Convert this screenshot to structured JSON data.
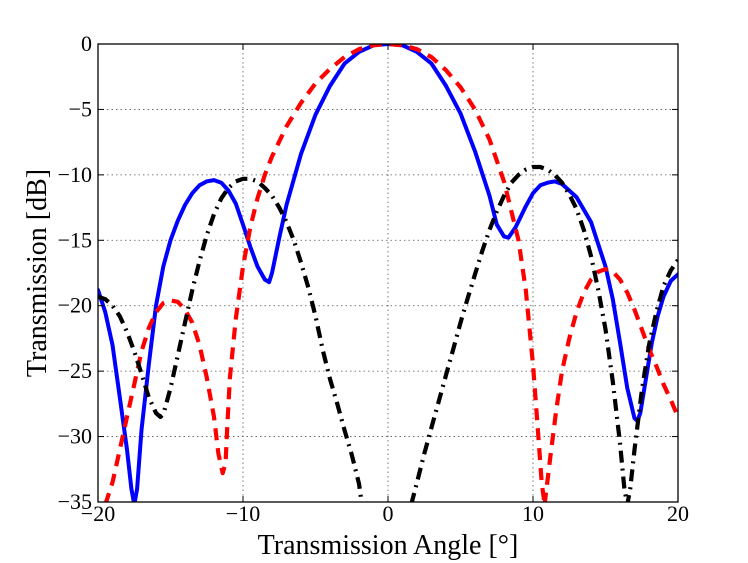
{
  "chart_data": {
    "type": "line",
    "title": "",
    "xlabel": "Transmission Angle [°]",
    "ylabel": "Transmission [dB]",
    "xlim": [
      -20,
      20
    ],
    "ylim": [
      -35,
      0
    ],
    "xticks": [
      -20,
      -10,
      0,
      10,
      20
    ],
    "yticks": [
      0,
      -5,
      -10,
      -15,
      -20,
      -25,
      -30,
      -35
    ],
    "xtick_labels": [
      "−20",
      "−10",
      "0",
      "10",
      "20"
    ],
    "ytick_labels": [
      "0",
      "−5",
      "−10",
      "−15",
      "−20",
      "−25",
      "−30",
      "−35"
    ],
    "grid": true,
    "series": [
      {
        "name": "blue-solid",
        "color": "#0000ff",
        "style": "solid",
        "x": [
          -20,
          -19.5,
          -19,
          -18.5,
          -18,
          -17.7,
          -17.5,
          -17.3,
          -17,
          -16.5,
          -16,
          -15.5,
          -15,
          -14.5,
          -14,
          -13.5,
          -13,
          -12.5,
          -12,
          -11.5,
          -11,
          -10.5,
          -10,
          -9.5,
          -9,
          -8.5,
          -8.2,
          -8,
          -7.5,
          -7,
          -6,
          -5,
          -4,
          -3,
          -2,
          -1,
          0,
          1,
          2,
          3,
          4,
          5,
          6,
          7,
          7.5,
          8,
          8.3,
          8.8,
          9.5,
          10,
          10.5,
          11,
          11.5,
          12,
          13,
          14,
          15,
          15.5,
          16,
          16.5,
          17,
          17.2,
          17.4,
          17.8,
          18.2,
          18.6,
          19,
          19.5,
          20
        ],
        "y": [
          -18.8,
          -20.5,
          -23,
          -27,
          -31,
          -34,
          -35.2,
          -34,
          -29.5,
          -24.5,
          -20,
          -17,
          -15,
          -13.5,
          -12.3,
          -11.4,
          -10.8,
          -10.5,
          -10.4,
          -10.6,
          -11.2,
          -12.2,
          -13.8,
          -15.5,
          -17.0,
          -18.0,
          -18.2,
          -17.5,
          -14.8,
          -12.3,
          -8.4,
          -5.4,
          -3.2,
          -1.5,
          -0.6,
          -0.1,
          0,
          -0.1,
          -0.6,
          -1.5,
          -3.2,
          -5.3,
          -8.2,
          -11.6,
          -13.8,
          -14.7,
          -14.8,
          -14.0,
          -12.4,
          -11.4,
          -10.8,
          -10.6,
          -10.5,
          -10.7,
          -11.7,
          -13.6,
          -17.0,
          -19.5,
          -22.8,
          -26.3,
          -28.6,
          -28.8,
          -28.2,
          -25.5,
          -22.8,
          -20.8,
          -19.3,
          -18.1,
          -17.6
        ]
      },
      {
        "name": "red-dashed",
        "color": "#ff0000",
        "style": "dashed",
        "x": [
          -19.5,
          -19,
          -18.5,
          -18,
          -17.5,
          -17,
          -16.5,
          -16,
          -15.5,
          -15,
          -14.5,
          -14,
          -13.5,
          -13,
          -12.5,
          -12,
          -11.7,
          -11.4,
          -11.2,
          -11.1,
          -10.9,
          -10.5,
          -10,
          -9.5,
          -9,
          -8.5,
          -8,
          -7,
          -6,
          -5,
          -4,
          -3,
          -2,
          -1,
          0,
          1,
          2,
          3,
          4,
          5,
          6,
          7,
          8,
          9,
          9.5,
          10,
          10.3,
          10.6,
          10.8
        ],
        "y": [
          -35.2,
          -33.5,
          -31.0,
          -28.5,
          -26.0,
          -23.5,
          -21.7,
          -20.5,
          -19.8,
          -19.6,
          -19.7,
          -20.3,
          -21.3,
          -23.0,
          -25.5,
          -28.5,
          -31.3,
          -32.8,
          -32.0,
          -29.5,
          -25.5,
          -21.0,
          -17.0,
          -14.0,
          -11.8,
          -10.0,
          -8.6,
          -6.3,
          -4.5,
          -3.0,
          -1.9,
          -1.0,
          -0.4,
          -0.1,
          0,
          -0.1,
          -0.4,
          -1.0,
          -2.0,
          -3.3,
          -5.0,
          -7.3,
          -10.5,
          -15.0,
          -18.8,
          -24.5,
          -29.0,
          -33.5,
          -35.2
        ]
      },
      {
        "name": "red-dashed-right",
        "color": "#ff0000",
        "style": "dashed",
        "x": [
          10.8,
          11.2,
          11.6,
          12,
          12.5,
          13,
          13.5,
          14,
          14.5,
          15,
          15.5,
          16,
          16.5,
          17,
          17.5,
          18,
          18.5,
          19,
          19.5,
          20
        ],
        "y": [
          -35.2,
          -31.5,
          -28.0,
          -25.0,
          -22.5,
          -20.5,
          -19.0,
          -18.0,
          -17.4,
          -17.2,
          -17.4,
          -18.0,
          -19.0,
          -20.3,
          -21.8,
          -23.3,
          -24.6,
          -26.0,
          -27.2,
          -28.5
        ]
      },
      {
        "name": "black-dashdot",
        "color": "#000000",
        "style": "dashdot",
        "x": [
          -20,
          -19.5,
          -19,
          -18.5,
          -18,
          -17.5,
          -17,
          -16.5,
          -16,
          -15.7,
          -15.5,
          -15,
          -14.5,
          -14,
          -13.5,
          -13,
          -12.5,
          -12,
          -11.5,
          -11,
          -10.5,
          -10,
          -9.5,
          -9,
          -8.5,
          -8,
          -7.5,
          -7,
          -6.5,
          -6,
          -5.5,
          -5,
          -4.5,
          -4,
          -3.5,
          -3,
          -2.5,
          -2,
          -1.8
        ],
        "y": [
          -19.3,
          -19.5,
          -20.0,
          -20.8,
          -22.0,
          -23.5,
          -25.2,
          -27.0,
          -28.2,
          -28.5,
          -28.3,
          -26.3,
          -23.8,
          -21.3,
          -18.8,
          -16.6,
          -14.6,
          -13.0,
          -11.8,
          -11.0,
          -10.5,
          -10.3,
          -10.3,
          -10.5,
          -11.0,
          -11.6,
          -12.5,
          -13.6,
          -15.0,
          -16.7,
          -18.6,
          -20.8,
          -23.4,
          -25.6,
          -27.5,
          -29.5,
          -31.4,
          -33.6,
          -35.2
        ]
      },
      {
        "name": "black-dashdot-right",
        "color": "#000000",
        "style": "dashdot",
        "x": [
          1.6,
          2,
          2.5,
          3,
          3.5,
          4,
          4.5,
          5,
          5.5,
          6,
          6.5,
          7,
          7.5,
          8,
          8.5,
          9,
          9.5,
          10,
          10.5,
          11,
          11.5,
          12,
          12.5,
          13,
          13.5,
          14,
          14.5,
          15,
          15.5,
          16,
          16.3,
          16.5,
          16.7,
          17,
          17.5,
          18,
          18.5,
          19,
          19.5,
          20
        ],
        "y": [
          -35.2,
          -33.5,
          -31.3,
          -29.3,
          -27.3,
          -25.3,
          -23.3,
          -21.3,
          -19.4,
          -17.6,
          -15.8,
          -14.2,
          -12.8,
          -11.6,
          -10.6,
          -10.0,
          -9.6,
          -9.4,
          -9.4,
          -9.6,
          -10.0,
          -10.6,
          -11.5,
          -12.6,
          -14.2,
          -16.2,
          -18.8,
          -21.8,
          -25.8,
          -30.5,
          -34.0,
          -35.2,
          -34.0,
          -31.0,
          -26.5,
          -23.0,
          -20.5,
          -18.5,
          -17.3,
          -16.5
        ]
      }
    ]
  }
}
